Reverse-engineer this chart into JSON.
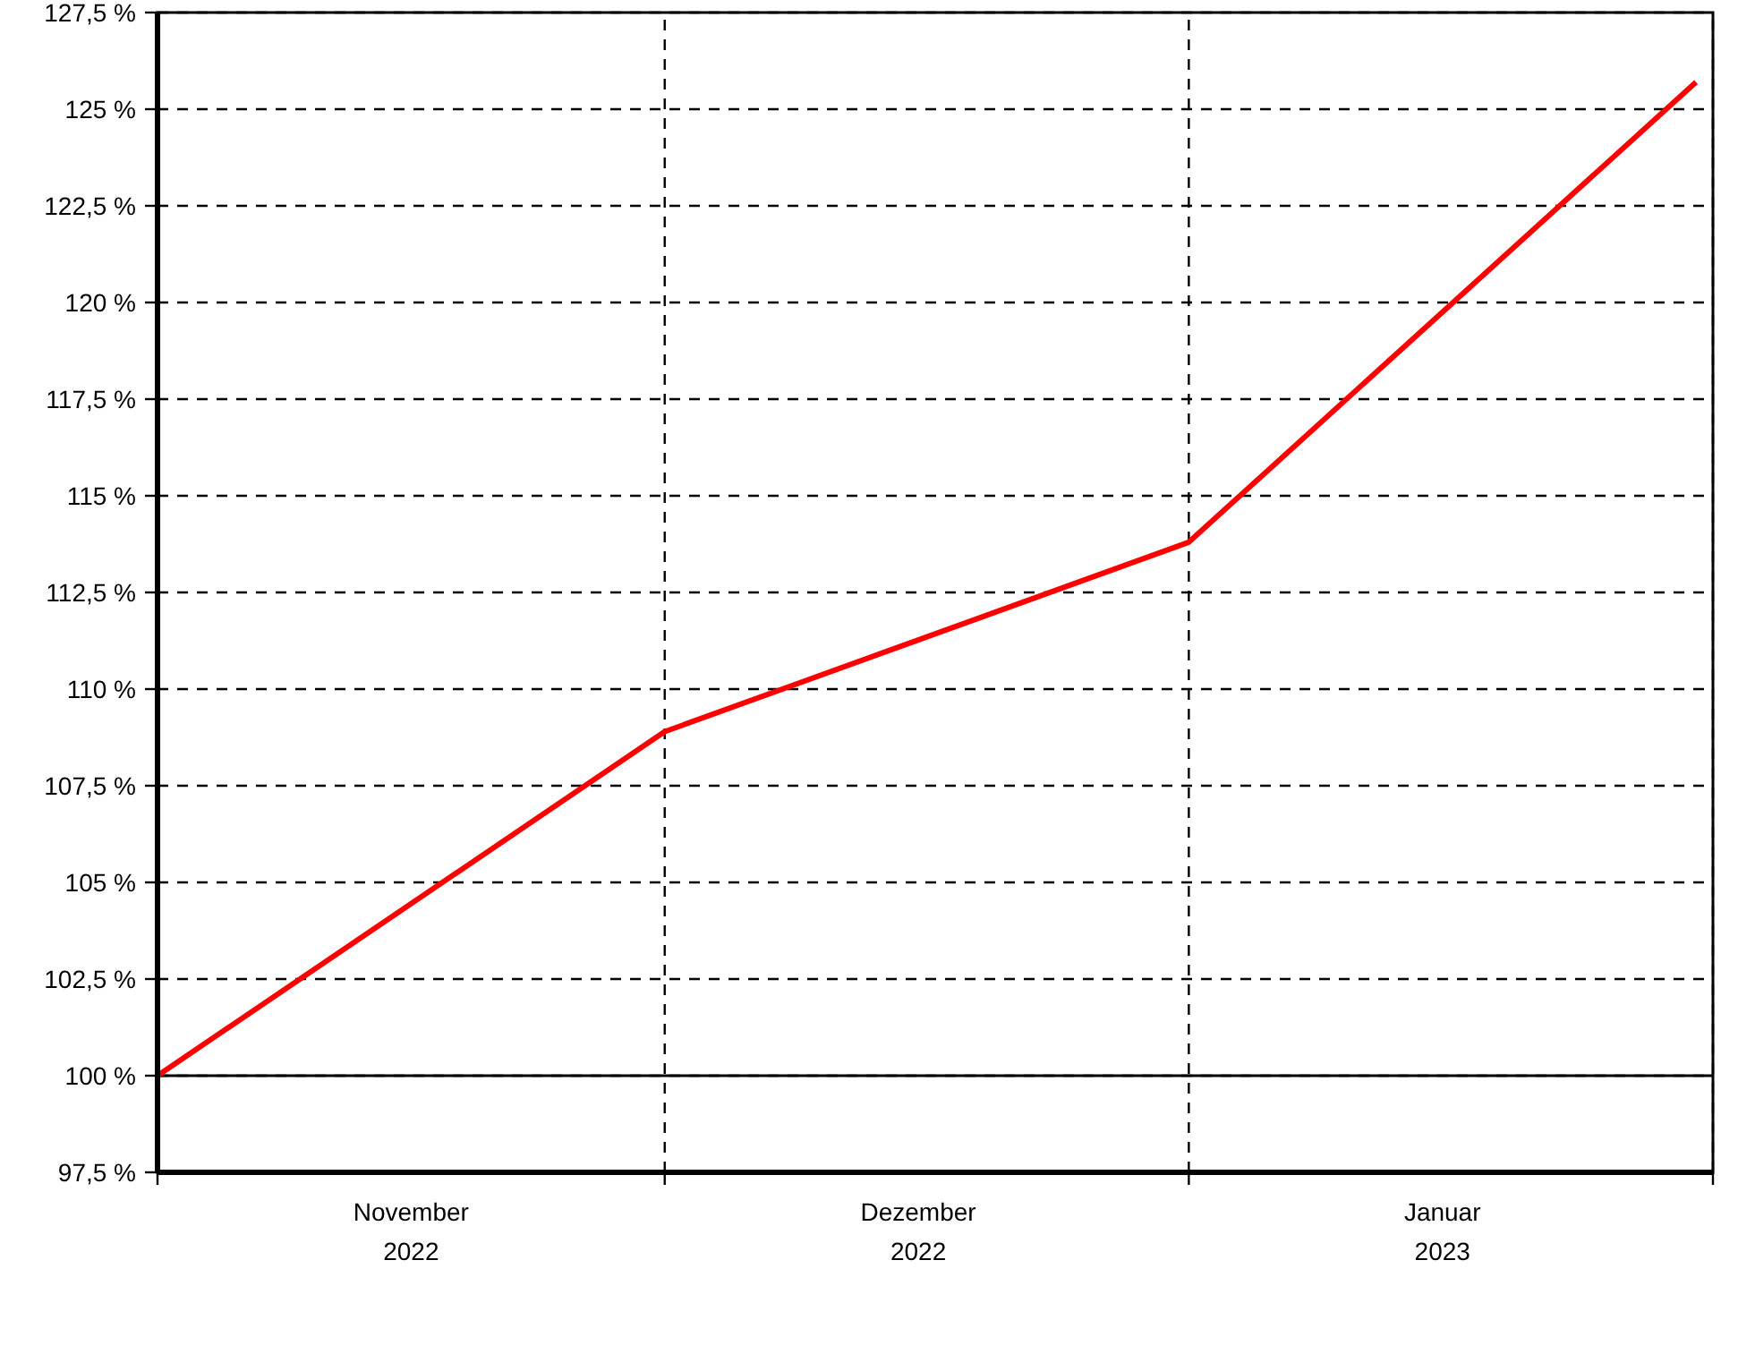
{
  "chart_data": {
    "type": "line",
    "x": [
      "2022-11-01",
      "2022-12-01",
      "2023-01-01",
      "2023-01-31"
    ],
    "series": [
      {
        "color": "#ff0000",
        "values": [
          100,
          108.9,
          113.8,
          125.7
        ]
      }
    ],
    "xlim": [
      "2022-11-01",
      "2023-02-01"
    ],
    "xticks": [
      {
        "value": "2022-11-01",
        "label": null
      },
      {
        "value": "2022-11-16",
        "label": "November\n2022"
      },
      {
        "value": "2022-12-01",
        "label": null
      },
      {
        "value": "2022-12-16",
        "label": "Dezember\n2022"
      },
      {
        "value": "2023-01-01",
        "label": null
      },
      {
        "value": "2023-01-16",
        "label": "Januar\n2023"
      },
      {
        "value": "2023-02-01",
        "label": null
      }
    ],
    "ylim": [
      97.5,
      127.5
    ],
    "yticks": [
      {
        "value": 97.5,
        "label": "97,5 %"
      },
      {
        "value": 100,
        "label": "100 %"
      },
      {
        "value": 102.5,
        "label": "102,5 %"
      },
      {
        "value": 105,
        "label": "105 %"
      },
      {
        "value": 107.5,
        "label": "107,5 %"
      },
      {
        "value": 110,
        "label": "110 %"
      },
      {
        "value": 112.5,
        "label": "112,5 %"
      },
      {
        "value": 115,
        "label": "115 %"
      },
      {
        "value": 117.5,
        "label": "117,5 %"
      },
      {
        "value": 120,
        "label": "120 %"
      },
      {
        "value": 122.5,
        "label": "122,5 %"
      },
      {
        "value": 125,
        "label": "125 %"
      },
      {
        "value": 127.5,
        "label": "127,5 %"
      }
    ],
    "grid": true,
    "ref_lines": [
      {
        "axis": "y",
        "value": 100,
        "color": "#000000",
        "line_style": "solid"
      }
    ],
    "line_style": "solid",
    "marker": "none"
  }
}
